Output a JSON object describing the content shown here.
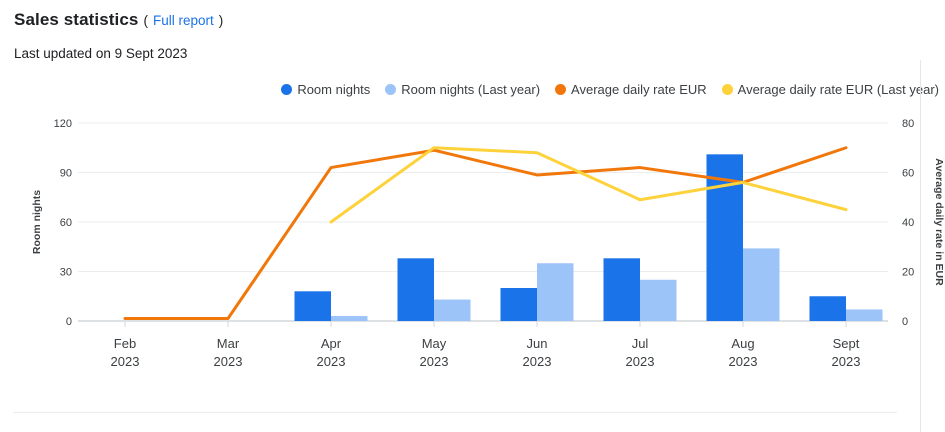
{
  "header": {
    "title": "Sales statistics",
    "paren_open": "(",
    "report_link": "Full report",
    "paren_close": ")",
    "last_updated": "Last updated on 9 Sept 2023"
  },
  "legend": [
    {
      "label": "Room nights",
      "color": "#1a73e8"
    },
    {
      "label": "Room nights (Last year)",
      "color": "#9dc4f8"
    },
    {
      "label": "Average daily rate EUR",
      "color": "#f2770a"
    },
    {
      "label": "Average daily rate EUR (Last year)",
      "color": "#fdd23b"
    }
  ],
  "chart_data": {
    "type": "bar",
    "subtype": "combo bar+line, dual axis",
    "categories": [
      "Feb 2023",
      "Mar 2023",
      "Apr 2023",
      "May 2023",
      "Jun 2023",
      "Jul 2023",
      "Aug 2023",
      "Sept 2023"
    ],
    "bar_series": [
      {
        "name": "Room nights",
        "axis": "left",
        "color": "#1a73e8",
        "values": [
          0,
          0,
          18,
          38,
          20,
          38,
          101,
          15
        ]
      },
      {
        "name": "Room nights (Last year)",
        "axis": "left",
        "color": "#9dc4f8",
        "values": [
          0,
          0,
          3,
          13,
          35,
          25,
          44,
          7
        ]
      }
    ],
    "line_series": [
      {
        "name": "Average daily rate EUR",
        "axis": "right",
        "color": "#f2770a",
        "values": [
          1,
          1,
          62,
          69,
          59,
          62,
          56,
          70
        ]
      },
      {
        "name": "Average daily rate EUR (Last year)",
        "axis": "right",
        "color": "#fdd23b",
        "values": [
          null,
          null,
          40,
          70,
          68,
          49,
          56,
          45
        ]
      }
    ],
    "left_axis": {
      "title": "Room nights",
      "ticks": [
        0,
        30,
        60,
        90,
        120
      ],
      "range": [
        0,
        120
      ]
    },
    "right_axis": {
      "title": "Average daily rate in EUR",
      "ticks": [
        0,
        20,
        40,
        60,
        80
      ],
      "range": [
        0,
        80
      ]
    },
    "grid": true,
    "legend_position": "top-right"
  }
}
